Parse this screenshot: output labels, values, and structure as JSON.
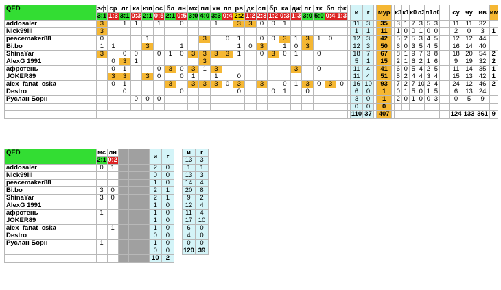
{
  "main": {
    "title": "QED",
    "columns": [
      "эф",
      "ср",
      "лг",
      "ка",
      "юп",
      "ос",
      "бл",
      "лн",
      "мх",
      "пл",
      "хн",
      "пп",
      "рв",
      "дк",
      "сп",
      "бр",
      "ка",
      "дж",
      "лг",
      "тк",
      "бл",
      "фк"
    ],
    "scores": [
      "3:1",
      "1:3",
      "3:1",
      "0:3",
      "2:1",
      "0:5",
      "2:1",
      "0:5",
      "3:0",
      "4:0",
      "3:3",
      "0:4",
      "2:2",
      "1:2",
      "2:3",
      "1:2",
      "0:3",
      "1:3",
      "3:0",
      "5:0",
      "0:4",
      "1:3"
    ],
    "stat_headers": [
      "и",
      "г",
      "мур",
      "к3",
      "к1",
      "к0",
      "л3",
      "л1",
      "л0",
      "",
      "су",
      "чу",
      "ив",
      "им"
    ],
    "rows": [
      {
        "name": "addosaler",
        "cells": [
          "3",
          "",
          "1",
          "1",
          "",
          "1",
          "",
          "0",
          "",
          "",
          "1",
          "",
          "3",
          "3",
          "0",
          "0",
          "1",
          "",
          "",
          "",
          "",
          ""
        ],
        "stats": [
          "11",
          "3",
          "35",
          "3",
          "1",
          "7",
          "3",
          "5",
          "3",
          "",
          "11",
          "11",
          "32",
          ""
        ]
      },
      {
        "name": "Nick99III",
        "cells": [
          "3",
          "",
          "",
          "",
          "",
          "",
          "",
          "",
          "",
          "",
          "",
          "",
          "",
          "",
          "",
          "",
          "",
          "",
          "",
          "",
          "",
          ""
        ],
        "stats": [
          "1",
          "1",
          "11",
          "1",
          "0",
          "0",
          "1",
          "0",
          "0",
          "",
          "2",
          "0",
          "3",
          "1"
        ]
      },
      {
        "name": "peacemaker88",
        "cells": [
          "0",
          "",
          "",
          "",
          "1",
          "",
          "",
          "",
          "",
          "3",
          "",
          "0",
          "1",
          "",
          "0",
          "0",
          "3",
          "1",
          "3",
          "1",
          "0",
          ""
        ],
        "stats": [
          "12",
          "3",
          "42",
          "5",
          "2",
          "5",
          "3",
          "4",
          "5",
          "",
          "12",
          "12",
          "44",
          ""
        ]
      },
      {
        "name": "Bi.bo",
        "cells": [
          "1",
          "1",
          "",
          "",
          "3",
          "",
          "",
          "1",
          "",
          "",
          "",
          "",
          "1",
          "0",
          "3",
          "",
          "1",
          "0",
          "3",
          "",
          "",
          ""
        ],
        "stats": [
          "12",
          "3",
          "50",
          "6",
          "0",
          "3",
          "5",
          "4",
          "5",
          "",
          "16",
          "14",
          "40",
          ""
        ]
      },
      {
        "name": "ShinaYar",
        "cells": [
          "3",
          "",
          "0",
          "0",
          "",
          "0",
          "1",
          "0",
          "3",
          "3",
          "3",
          "3",
          "1",
          "",
          "0",
          "3",
          "0",
          "1",
          "",
          "0",
          "",
          ""
        ],
        "stats": [
          "18",
          "7",
          "67",
          "8",
          "1",
          "9",
          "7",
          "3",
          "8",
          "",
          "18",
          "20",
          "54",
          "2"
        ]
      },
      {
        "name": "AlexG 1991",
        "cells": [
          "",
          "0",
          "3",
          "1",
          "",
          "",
          "",
          "",
          "",
          "3",
          "",
          "",
          "",
          "",
          "",
          "",
          "",
          "",
          "",
          "",
          "",
          ""
        ],
        "stats": [
          "5",
          "1",
          "15",
          "2",
          "1",
          "6",
          "2",
          "1",
          "6",
          "",
          "9",
          "19",
          "32",
          "2"
        ]
      },
      {
        "name": "афротень",
        "cells": [
          "",
          "0",
          "1",
          "",
          "",
          "0",
          "3",
          "0",
          "3",
          "1",
          "3",
          "",
          "",
          "",
          "",
          "",
          "",
          "3",
          "",
          "0",
          "",
          ""
        ],
        "stats": [
          "11",
          "4",
          "41",
          "6",
          "0",
          "5",
          "4",
          "2",
          "5",
          "",
          "11",
          "14",
          "35",
          "1"
        ]
      },
      {
        "name": "JOKER89",
        "cells": [
          "",
          "3",
          "3",
          "",
          "3",
          "0",
          "",
          "0",
          "1",
          "",
          "1",
          "",
          "0",
          "",
          "",
          "",
          "",
          "",
          "",
          "",
          "",
          ""
        ],
        "stats": [
          "11",
          "4",
          "51",
          "5",
          "2",
          "4",
          "4",
          "3",
          "4",
          "",
          "15",
          "13",
          "42",
          "1"
        ]
      },
      {
        "name": "alex_fanat_cska",
        "cells": [
          "",
          "0",
          "1",
          "",
          "",
          "",
          "3",
          "",
          "3",
          "3",
          "3",
          "0",
          "3",
          "",
          "3",
          "",
          "0",
          "1",
          "3",
          "0",
          "3",
          "0"
        ],
        "stats": [
          "16",
          "10",
          "93",
          "7",
          "2",
          "7",
          "10",
          "2",
          "4",
          "",
          "24",
          "12",
          "46",
          "2"
        ]
      },
      {
        "name": "Destro",
        "cells": [
          "",
          "",
          "0",
          "",
          "",
          "",
          "",
          "0",
          "",
          "",
          "",
          "",
          "0",
          "",
          "",
          "0",
          "1",
          "",
          "0",
          "",
          "",
          ""
        ],
        "stats": [
          "6",
          "0",
          "1",
          "0",
          "1",
          "5",
          "0",
          "1",
          "5",
          "",
          "6",
          "13",
          "24",
          ""
        ]
      },
      {
        "name": "Руслан Борн",
        "cells": [
          "",
          "",
          "",
          "0",
          "0",
          "0",
          "",
          "",
          "",
          "",
          "",
          "",
          "",
          "",
          "",
          "",
          "",
          "",
          "",
          "",
          "",
          ""
        ],
        "stats": [
          "3",
          "0",
          "1",
          "2",
          "0",
          "1",
          "0",
          "0",
          "3",
          "",
          "0",
          "5",
          "9",
          ""
        ]
      },
      {
        "name": "",
        "cells": [
          "",
          "",
          "",
          "",
          "",
          "",
          "",
          "",
          "",
          "",
          "",
          "",
          "",
          "",
          "",
          "",
          "",
          "",
          "",
          "",
          "",
          ""
        ],
        "stats": [
          "0",
          "0",
          "0",
          "",
          "",
          "",
          "",
          "",
          "",
          "",
          "",
          "",
          "",
          ""
        ]
      }
    ],
    "totals": [
      "110",
      "37",
      "407",
      "",
      "",
      "",
      "",
      "",
      "",
      "",
      "124",
      "133",
      "361",
      "9"
    ]
  },
  "lower": {
    "title": "QED",
    "columns": [
      "мс",
      "лн"
    ],
    "scores": [
      "2:1",
      "0:2"
    ],
    "stat_headers": [
      "и",
      "г"
    ],
    "rows": [
      {
        "name": "addosaler",
        "cells": [
          "0",
          "1"
        ],
        "stats": [
          "2",
          "0"
        ],
        "side": [
          "13",
          "3"
        ]
      },
      {
        "name": "Nick99III",
        "cells": [
          "",
          ""
        ],
        "stats": [
          "0",
          "0"
        ],
        "side": [
          "1",
          "1"
        ]
      },
      {
        "name": "peacemaker88",
        "cells": [
          "",
          ""
        ],
        "stats": [
          "1",
          "0"
        ],
        "side": [
          "13",
          "3"
        ]
      },
      {
        "name": "Bi.bo",
        "cells": [
          "3",
          "0"
        ],
        "stats": [
          "2",
          "1"
        ],
        "side": [
          "14",
          "4"
        ]
      },
      {
        "name": "ShinaYar",
        "cells": [
          "3",
          "0"
        ],
        "stats": [
          "2",
          "1"
        ],
        "side": [
          "20",
          "8"
        ]
      },
      {
        "name": "AlexG 1991",
        "cells": [
          "",
          ""
        ],
        "stats": [
          "1",
          "0"
        ],
        "side": [
          "9",
          "2"
        ]
      },
      {
        "name": "афротень",
        "cells": [
          "1",
          ""
        ],
        "stats": [
          "1",
          "0"
        ],
        "side": [
          "12",
          "4"
        ]
      },
      {
        "name": "JOKER89",
        "cells": [
          "",
          ""
        ],
        "stats": [
          "1",
          "0"
        ],
        "side": [
          "11",
          "4"
        ]
      },
      {
        "name": "alex_fanat_cska",
        "cells": [
          "",
          "1"
        ],
        "stats": [
          "1",
          "0"
        ],
        "side": [
          "17",
          "10"
        ]
      },
      {
        "name": "Destro",
        "cells": [
          "",
          ""
        ],
        "stats": [
          "0",
          "0"
        ],
        "side": [
          "6",
          "0"
        ]
      },
      {
        "name": "Руслан Борн",
        "cells": [
          "1",
          ""
        ],
        "stats": [
          "1",
          "0"
        ],
        "side": [
          "4",
          "0"
        ]
      },
      {
        "name": "",
        "cells": [
          "",
          ""
        ],
        "stats": [
          "0",
          "0"
        ],
        "side": [
          "0",
          "0"
        ]
      }
    ],
    "totals": [
      "10",
      "2"
    ],
    "side_totals": [
      "120",
      "39"
    ]
  }
}
